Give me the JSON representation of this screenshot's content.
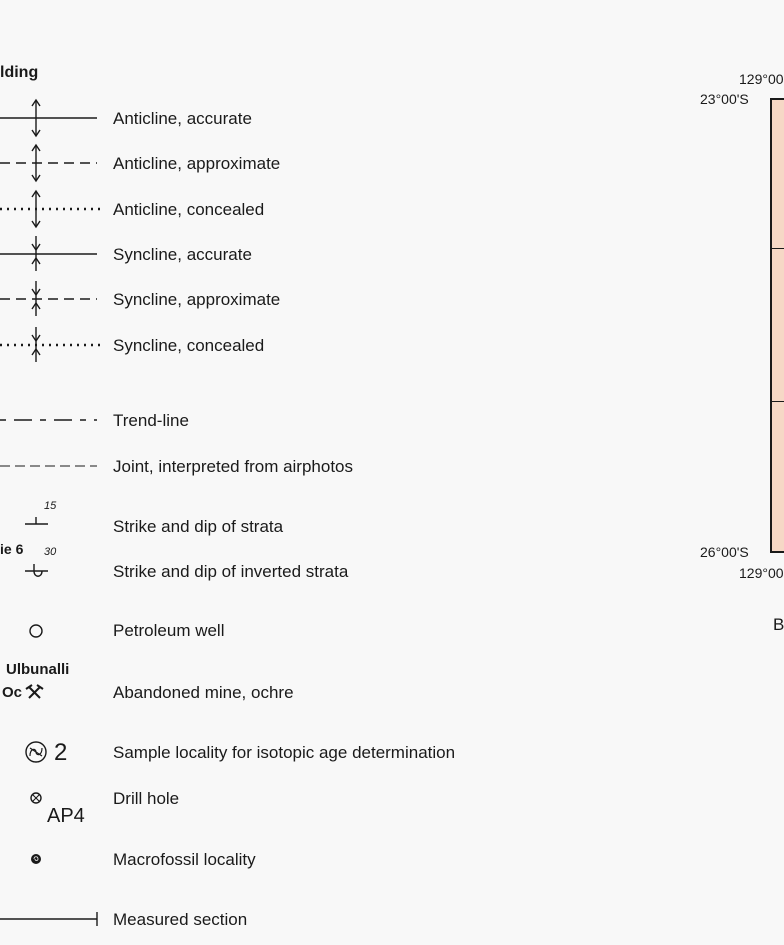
{
  "legend": {
    "section_heading": "lding",
    "items": [
      {
        "key": "anticline-accurate",
        "label": "Anticline, accurate"
      },
      {
        "key": "anticline-approximate",
        "label": "Anticline, approximate"
      },
      {
        "key": "anticline-concealed",
        "label": "Anticline, concealed"
      },
      {
        "key": "syncline-accurate",
        "label": "Syncline, accurate"
      },
      {
        "key": "syncline-approximate",
        "label": "Syncline, approximate"
      },
      {
        "key": "syncline-concealed",
        "label": "Syncline, concealed"
      },
      {
        "key": "trend-line",
        "label": "Trend-line"
      },
      {
        "key": "joint",
        "label": "Joint, interpreted from airphotos"
      },
      {
        "key": "strike-dip",
        "label": "Strike and dip of strata"
      },
      {
        "key": "strike-dip-inverted",
        "label": "Strike and dip of inverted strata"
      },
      {
        "key": "petroleum-well",
        "label": "Petroleum well"
      },
      {
        "key": "abandoned-mine",
        "label": "Abandoned mine, ochre"
      },
      {
        "key": "isotopic-sample",
        "label": "Sample locality for isotopic age determination"
      },
      {
        "key": "drill-hole",
        "label": "Drill hole"
      },
      {
        "key": "macrofossil",
        "label": "Macrofossil locality"
      },
      {
        "key": "measured-section",
        "label": "Measured section"
      }
    ],
    "dip_values": {
      "strata": "15",
      "inverted": "30"
    },
    "example_labels": {
      "strike_dip_example": "ie 6",
      "mine_name": "Ulbunalli",
      "mine_code": "Oc",
      "isotope_number": "2",
      "drill_hole_id": "AP4"
    }
  },
  "inset_map": {
    "top_longitude": "129°00",
    "bottom_longitude": "129°00",
    "top_latitude": "23°00'S",
    "bottom_latitude": "26°00'S",
    "caption_fragment": "B",
    "fill_color": "#f6d8c6",
    "border_color": "#1a1a1a"
  }
}
